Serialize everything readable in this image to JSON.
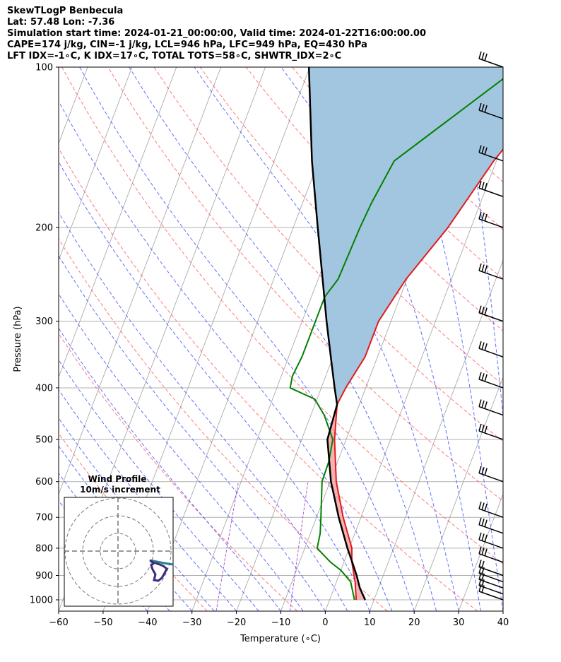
{
  "header": {
    "line1": "SkewTLogP Benbecula",
    "line2": "Lat: 57.48   Lon: -7.36",
    "line3": "Simulation start time: 2024-01-21_00:00:00, Valid time: 2024-01-22T16:00:00.00",
    "line4": "CAPE=174 j/kg, CIN=-1 j/kg, LCL=946 hPa, LFC=949 hPa, EQ=430 hPa",
    "line5": "LFT IDX=-1∘C, K IDX=17∘C, TOTAL TOTS=58∘C, SHWTR_IDX=2∘C"
  },
  "colors": {
    "temperature": "#e31a1c",
    "dewpoint": "#008000",
    "parcel": "#000000",
    "cape_fill": "#a3c6e0",
    "cin_fill": "#f4a0a0",
    "dry_adiabat": "#ff4d4d",
    "moist_adiabat": "#3a4dff",
    "mixing_ratio": "#9933cc",
    "isotherm": "#a0a0a0"
  },
  "chart_data": {
    "type": "line",
    "subtype": "skew-t log-p",
    "xlabel": "Temperature (∘C)",
    "ylabel": "Pressure (hPa)",
    "xlim": [
      -60,
      40
    ],
    "ylim": [
      1050,
      100
    ],
    "x_ticks": [
      "−60",
      "−50",
      "−40",
      "−30",
      "−20",
      "−10",
      "0",
      "10",
      "20",
      "30",
      "40"
    ],
    "x_tick_values": [
      -60,
      -50,
      -40,
      -30,
      -20,
      -10,
      0,
      10,
      20,
      30,
      40
    ],
    "y_ticks": [
      "100",
      "200",
      "300",
      "400",
      "500",
      "600",
      "700",
      "800",
      "900",
      "1000"
    ],
    "y_tick_values": [
      100,
      200,
      300,
      400,
      500,
      600,
      700,
      800,
      900,
      1000
    ],
    "grid": true,
    "series": [
      {
        "name": "temperature",
        "points": [
          [
            1000,
            6.0
          ],
          [
            925,
            4.2
          ],
          [
            850,
            1.8
          ],
          [
            800,
            0.6
          ],
          [
            700,
            -4.0
          ],
          [
            600,
            -8.6
          ],
          [
            500,
            -12.6
          ],
          [
            430,
            -15.0
          ],
          [
            400,
            -14.5
          ],
          [
            350,
            -12.8
          ],
          [
            300,
            -12.8
          ],
          [
            250,
            -10.2
          ],
          [
            200,
            -5.2
          ],
          [
            150,
            -0.6
          ],
          [
            100,
            8.5
          ]
        ]
      },
      {
        "name": "dewpoint",
        "points": [
          [
            1000,
            5.6
          ],
          [
            925,
            3.2
          ],
          [
            880,
            0.0
          ],
          [
            850,
            -3.0
          ],
          [
            800,
            -7.2
          ],
          [
            750,
            -7.8
          ],
          [
            700,
            -9.0
          ],
          [
            600,
            -11.8
          ],
          [
            550,
            -12.0
          ],
          [
            500,
            -13.0
          ],
          [
            450,
            -17.0
          ],
          [
            420,
            -20.5
          ],
          [
            400,
            -27.0
          ],
          [
            380,
            -27.5
          ],
          [
            350,
            -27.0
          ],
          [
            300,
            -27.0
          ],
          [
            270,
            -27.0
          ],
          [
            250,
            -25.5
          ],
          [
            200,
            -25.0
          ],
          [
            180,
            -24.5
          ],
          [
            150,
            -23.0
          ],
          [
            100,
            -3.0
          ]
        ]
      },
      {
        "name": "parcel",
        "points": [
          [
            1000,
            8.0
          ],
          [
            950,
            5.8
          ],
          [
            900,
            4.0
          ],
          [
            850,
            1.9
          ],
          [
            800,
            -0.4
          ],
          [
            700,
            -5.0
          ],
          [
            600,
            -9.8
          ],
          [
            500,
            -14.2
          ],
          [
            430,
            -15.0
          ],
          [
            400,
            -17.0
          ],
          [
            350,
            -20.5
          ],
          [
            300,
            -24.5
          ],
          [
            250,
            -29.0
          ],
          [
            200,
            -34.5
          ],
          [
            150,
            -41.5
          ],
          [
            100,
            -50.2
          ]
        ]
      }
    ],
    "wind_barbs_pressure_levels": [
      1000,
      975,
      950,
      925,
      900,
      850,
      800,
      750,
      700,
      600,
      500,
      450,
      400,
      350,
      300,
      250,
      200,
      175,
      150,
      125,
      100
    ],
    "hodograph": {
      "title": "Wind Profile",
      "subtitle": "10m/s increment"
    }
  }
}
